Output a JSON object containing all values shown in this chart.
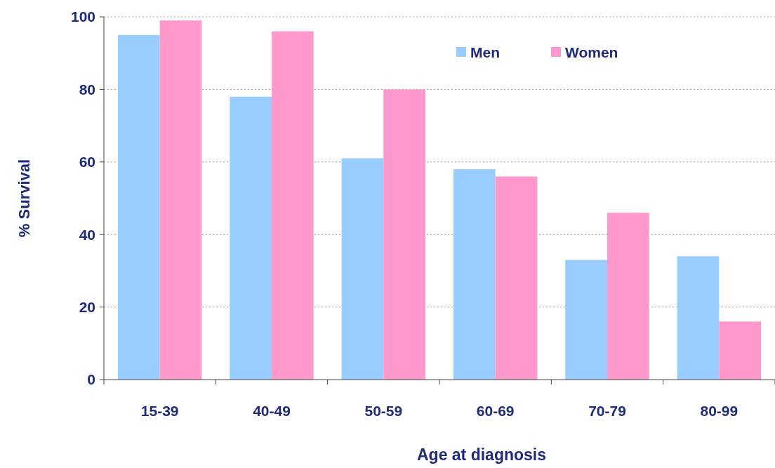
{
  "chart_data": {
    "type": "bar",
    "xlabel": "Age at diagnosis",
    "ylabel": "% Survival",
    "categories": [
      "15-39",
      "40-49",
      "50-59",
      "60-69",
      "70-79",
      "80-99"
    ],
    "series": [
      {
        "name": "Men",
        "color": "#99ccff",
        "values": [
          95,
          78,
          61,
          58,
          33,
          34
        ]
      },
      {
        "name": "Women",
        "color": "#ff99cc",
        "values": [
          99,
          96,
          80,
          56,
          46,
          16
        ]
      }
    ],
    "ylim": [
      0,
      100
    ],
    "yticks": [
      0,
      20,
      40,
      60,
      80,
      100
    ],
    "grid": "y",
    "legend": "top right"
  }
}
